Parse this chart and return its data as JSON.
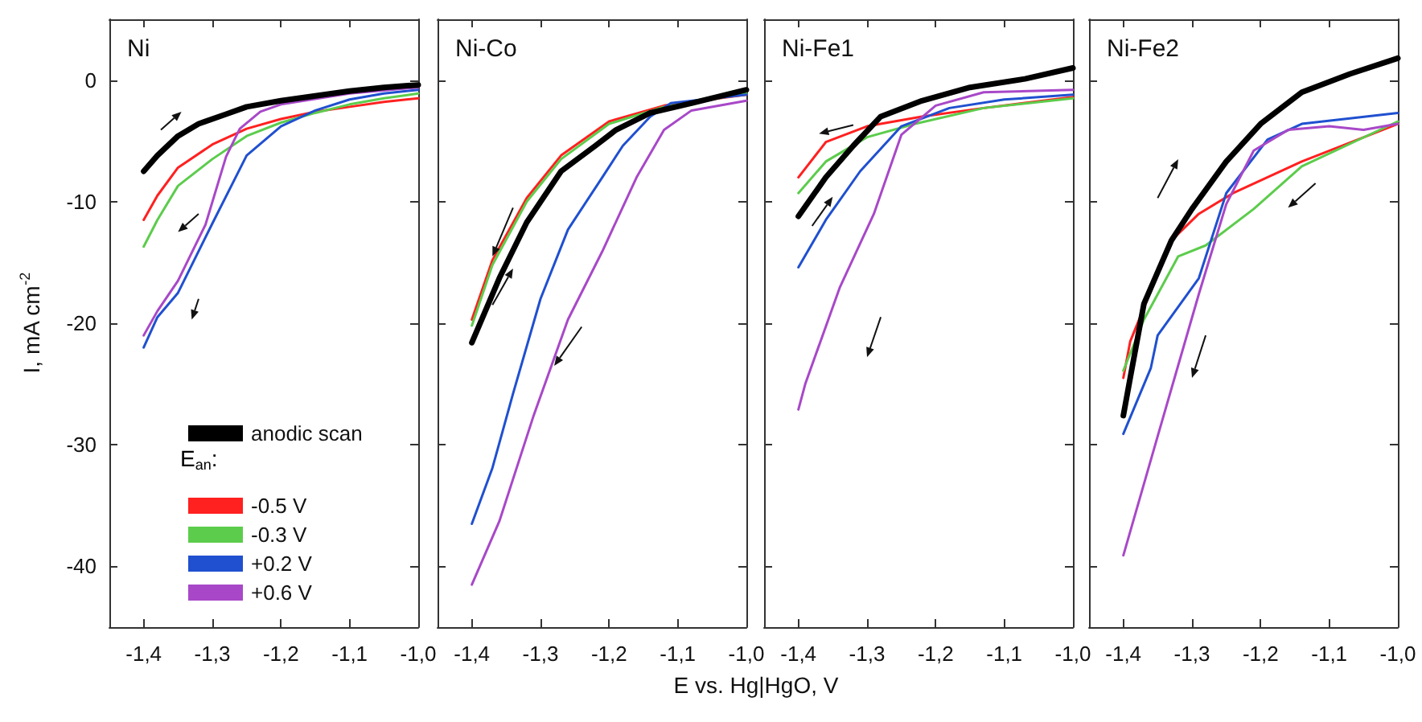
{
  "chart_data": [
    {
      "type": "line",
      "title": "Ni",
      "ylabel": "I, mA cm$^{-2}$",
      "legend_title": "E$_{an}$:",
      "legend": "bottom",
      "marker": "none",
      "line_style": "solid",
      "grid": false,
      "xlim": [
        -1.45,
        -1.0
      ],
      "xticks": [
        {
          "value": -1.4,
          "label": "-1,4"
        },
        {
          "value": -1.3,
          "label": "-1,3"
        },
        {
          "value": -1.2,
          "label": "-1,2"
        },
        {
          "value": -1.1,
          "label": "-1,1"
        },
        {
          "value": -1.0,
          "label": "-1,0"
        }
      ],
      "ylim": [
        -45,
        5
      ],
      "yticks": [
        -40,
        -30,
        -20,
        -10,
        0
      ],
      "series": [
        {
          "name": "anodic scan",
          "color": "#000000",
          "x": [
            -1.4,
            -1.38,
            -1.35,
            -1.32,
            -1.28,
            -1.25,
            -1.2,
            -1.15,
            -1.1,
            -1.05,
            -1.0
          ],
          "values": [
            -7.5,
            -6.2,
            -4.6,
            -3.6,
            -2.8,
            -2.2,
            -1.7,
            -1.3,
            -0.9,
            -0.6,
            -0.4
          ]
        },
        {
          "name": "-0.5 V",
          "color": "#ff2020",
          "x": [
            -1.4,
            -1.38,
            -1.35,
            -1.3,
            -1.25,
            -1.2,
            -1.15,
            -1.1,
            -1.05,
            -1.0
          ],
          "values": [
            -11.5,
            -9.5,
            -7.2,
            -5.3,
            -4.0,
            -3.2,
            -2.6,
            -2.2,
            -1.8,
            -1.5
          ]
        },
        {
          "name": "-0.3 V",
          "color": "#5ccc4c",
          "x": [
            -1.4,
            -1.38,
            -1.35,
            -1.3,
            -1.25,
            -1.2,
            -1.15,
            -1.1,
            -1.05,
            -1.0
          ],
          "values": [
            -13.7,
            -11.5,
            -8.7,
            -6.5,
            -4.6,
            -3.5,
            -2.7,
            -2.0,
            -1.5,
            -1.1
          ]
        },
        {
          "name": "+0.2 V",
          "color": "#2050d0",
          "x": [
            -1.4,
            -1.38,
            -1.35,
            -1.3,
            -1.25,
            -1.2,
            -1.15,
            -1.1,
            -1.05,
            -1.0
          ],
          "values": [
            -22,
            -19.5,
            -17.5,
            -11.8,
            -6.2,
            -3.8,
            -2.5,
            -1.6,
            -1.1,
            -0.8
          ]
        },
        {
          "name": "+0.6 V",
          "color": "#a848c8",
          "x": [
            -1.4,
            -1.38,
            -1.35,
            -1.31,
            -1.28,
            -1.26,
            -1.23,
            -1.2,
            -1.1,
            -1.0
          ],
          "values": [
            -21,
            -19,
            -16.5,
            -11.9,
            -6.3,
            -4.0,
            -2.6,
            -2.0,
            -1.1,
            -0.6
          ]
        }
      ]
    },
    {
      "type": "line",
      "title": "Ni-Co",
      "xlabel": "E vs. Hg|HgO, V",
      "tick_labels": "x",
      "marker": "none",
      "line_style": "solid",
      "grid": false,
      "xlim": [
        -1.45,
        -1.0
      ],
      "xticks": [
        {
          "value": -1.4,
          "label": "-1,4"
        },
        {
          "value": -1.3,
          "label": "-1,3"
        },
        {
          "value": -1.2,
          "label": "-1,2"
        },
        {
          "value": -1.1,
          "label": "-1,1"
        },
        {
          "value": -1.0,
          "label": "-1,0"
        }
      ],
      "ylim": [
        -45,
        5
      ],
      "yticks": [
        -40,
        -30,
        -20,
        -10,
        0
      ],
      "series": [
        {
          "color": "#000000",
          "x": [
            -1.4,
            -1.36,
            -1.32,
            -1.27,
            -1.22,
            -1.19,
            -1.14,
            -1.08,
            -1.0
          ],
          "values": [
            -21.6,
            -16.3,
            -11.7,
            -7.5,
            -5.4,
            -4.1,
            -2.7,
            -1.9,
            -0.8
          ]
        },
        {
          "color": "#ff2020",
          "x": [
            -1.4,
            -1.37,
            -1.32,
            -1.27,
            -1.2,
            -1.12,
            -1.0
          ],
          "values": [
            -19.7,
            -14.8,
            -9.7,
            -6.2,
            -3.4,
            -2.1,
            -1.2
          ]
        },
        {
          "color": "#5ccc4c",
          "x": [
            -1.4,
            -1.37,
            -1.32,
            -1.27,
            -1.2,
            -1.12,
            -1.0
          ],
          "values": [
            -20.2,
            -15.2,
            -10.0,
            -6.5,
            -3.6,
            -2.2,
            -1.1
          ]
        },
        {
          "color": "#2050d0",
          "x": [
            -1.4,
            -1.37,
            -1.34,
            -1.3,
            -1.26,
            -1.21,
            -1.18,
            -1.14,
            -1.11,
            -1.0
          ],
          "values": [
            -36.5,
            -31.9,
            -25.8,
            -18,
            -12.3,
            -8.0,
            -5.4,
            -3.0,
            -1.9,
            -1.2
          ]
        },
        {
          "color": "#a848c8",
          "x": [
            -1.4,
            -1.36,
            -1.31,
            -1.26,
            -1.21,
            -1.16,
            -1.12,
            -1.08,
            -1.0
          ],
          "values": [
            -41.5,
            -36.3,
            -27.6,
            -19.7,
            -14.1,
            -8.0,
            -4.1,
            -2.5,
            -1.7
          ]
        }
      ]
    },
    {
      "type": "line",
      "title": "Ni-Fe1",
      "tick_labels": "x",
      "marker": "none",
      "line_style": "solid",
      "grid": false,
      "xlim": [
        -1.45,
        -1.0
      ],
      "xticks": [
        {
          "value": -1.4,
          "label": "-1,4"
        },
        {
          "value": -1.3,
          "label": "-1,3"
        },
        {
          "value": -1.2,
          "label": "-1,2"
        },
        {
          "value": -1.1,
          "label": "-1,1"
        },
        {
          "value": -1.0,
          "label": "-1,0"
        }
      ],
      "ylim": [
        -45,
        5
      ],
      "yticks": [
        -40,
        -30,
        -20,
        -10,
        0
      ],
      "series": [
        {
          "color": "#000000",
          "x": [
            -1.4,
            -1.36,
            -1.32,
            -1.28,
            -1.22,
            -1.15,
            -1.07,
            -1.0
          ],
          "values": [
            -11.2,
            -8.0,
            -5.4,
            -3.0,
            -1.7,
            -0.6,
            0.1,
            1.0
          ]
        },
        {
          "color": "#ff2020",
          "x": [
            -1.4,
            -1.36,
            -1.3,
            -1.22,
            -1.13,
            -1.0
          ],
          "values": [
            -8.0,
            -5.1,
            -3.8,
            -3.0,
            -2.3,
            -1.4
          ]
        },
        {
          "color": "#5ccc4c",
          "x": [
            -1.4,
            -1.36,
            -1.3,
            -1.23,
            -1.13,
            -1.0
          ],
          "values": [
            -9.3,
            -6.7,
            -4.7,
            -3.6,
            -2.3,
            -1.5
          ]
        },
        {
          "color": "#2050d0",
          "x": [
            -1.4,
            -1.36,
            -1.31,
            -1.25,
            -1.18,
            -1.1,
            -1.0
          ],
          "values": [
            -15.4,
            -11.5,
            -7.5,
            -3.8,
            -2.3,
            -1.6,
            -1.2
          ]
        },
        {
          "color": "#a848c8",
          "x": [
            -1.4,
            -1.39,
            -1.34,
            -1.29,
            -1.25,
            -1.2,
            -1.13,
            -1.0
          ],
          "values": [
            -27.1,
            -25,
            -17.1,
            -11.0,
            -4.5,
            -2.1,
            -1.0,
            -0.8
          ]
        }
      ]
    },
    {
      "type": "line",
      "title": "Ni-Fe2",
      "tick_labels": "x",
      "marker": "none",
      "line_style": "solid",
      "grid": false,
      "xlim": [
        -1.45,
        -1.0
      ],
      "xticks": [
        {
          "value": -1.4,
          "label": "-1,4"
        },
        {
          "value": -1.3,
          "label": "-1,3"
        },
        {
          "value": -1.2,
          "label": "-1,2"
        },
        {
          "value": -1.1,
          "label": "-1,1"
        },
        {
          "value": -1.0,
          "label": "-1,0"
        }
      ],
      "ylim": [
        -45,
        5
      ],
      "yticks": [
        -40,
        -30,
        -20,
        -10,
        0
      ],
      "series": [
        {
          "color": "#000000",
          "x": [
            -1.4,
            -1.39,
            -1.37,
            -1.33,
            -1.3,
            -1.25,
            -1.2,
            -1.14,
            -1.07,
            -1.0
          ],
          "values": [
            -27.6,
            -24.5,
            -18.4,
            -13.2,
            -10.6,
            -6.7,
            -3.6,
            -1.0,
            0.5,
            1.8
          ]
        },
        {
          "color": "#ff2020",
          "x": [
            -1.4,
            -1.39,
            -1.33,
            -1.29,
            -1.24,
            -1.14,
            -1.0
          ],
          "values": [
            -24.5,
            -21.5,
            -13.2,
            -11.0,
            -9.3,
            -6.7,
            -3.6
          ]
        },
        {
          "color": "#5ccc4c",
          "x": [
            -1.4,
            -1.37,
            -1.32,
            -1.28,
            -1.21,
            -1.14,
            -1.0
          ],
          "values": [
            -23.9,
            -19.7,
            -14.5,
            -13.6,
            -10.6,
            -7.1,
            -3.4
          ]
        },
        {
          "color": "#2050d0",
          "x": [
            -1.4,
            -1.36,
            -1.35,
            -1.29,
            -1.25,
            -1.19,
            -1.14,
            -1.0
          ],
          "values": [
            -29.1,
            -23.7,
            -21.0,
            -16.3,
            -9.3,
            -4.9,
            -3.6,
            -2.7
          ]
        },
        {
          "color": "#a848c8",
          "x": [
            -1.4,
            -1.35,
            -1.29,
            -1.25,
            -1.21,
            -1.16,
            -1.1,
            -1.05,
            -1.0
          ],
          "values": [
            -39.1,
            -29.3,
            -17.6,
            -10.2,
            -5.8,
            -4.1,
            -3.8,
            -4.1,
            -3.6
          ]
        }
      ]
    }
  ]
}
